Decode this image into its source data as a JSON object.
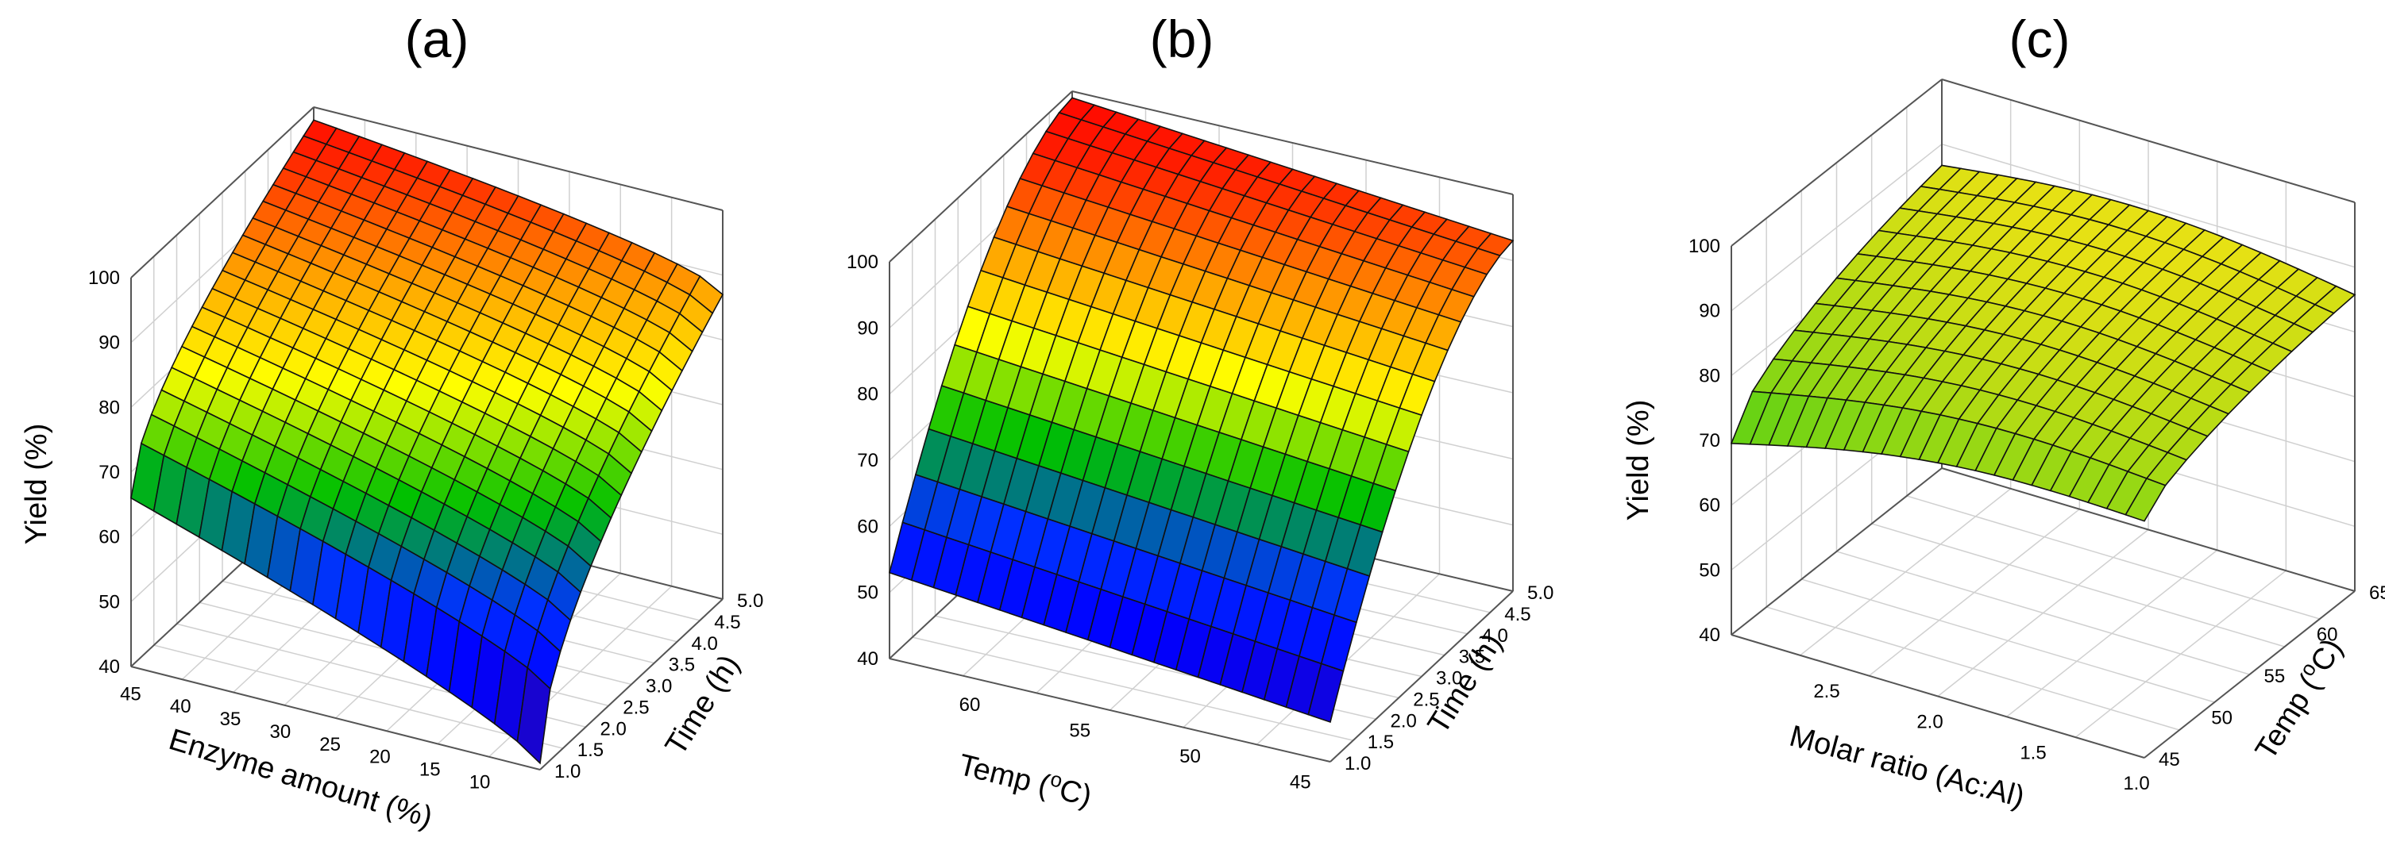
{
  "chart_data": [
    {
      "type": "surface",
      "panel_label": "(a)",
      "zlabel": "Yield (%)",
      "xlabel": "Enzyme amount (%)",
      "ylabel": "Time (h)",
      "zlim": [
        40,
        100
      ],
      "x_ticks": [
        "45",
        "40",
        "35",
        "30",
        "25",
        "20",
        "15",
        "10"
      ],
      "y_ticks": [
        "1.0",
        "1.5",
        "2.0",
        "2.5",
        "3.0",
        "3.5",
        "4.0",
        "4.5",
        "5.0"
      ],
      "z_ticks": [
        "40",
        "50",
        "60",
        "70",
        "80",
        "90",
        "100"
      ],
      "grid": true,
      "colormap": [
        "#3b0b8a",
        "#0000ff",
        "#00c000",
        "#ffff00",
        "#ff8c00",
        "#ff0000"
      ],
      "x": [
        10,
        50
      ],
      "y": [
        1.0,
        5.0
      ],
      "corner_values": {
        "x10_y1": 41,
        "x10_y5": 87,
        "x50_y1": 66,
        "x50_y5": 98
      }
    },
    {
      "type": "surface",
      "panel_label": "(b)",
      "zlabel": "",
      "xlabel": "Temp (",
      "xlabel_sup": "o",
      "xlabel_end": "C)",
      "ylabel": "Time (h)",
      "zlim": [
        40,
        100
      ],
      "x_ticks": [
        "60",
        "55",
        "50",
        "45"
      ],
      "y_ticks": [
        "1.0",
        "1.5",
        "2.0",
        "2.5",
        "3.0",
        "3.5",
        "4.0",
        "4.5",
        "5.0"
      ],
      "z_ticks": [
        "40",
        "50",
        "60",
        "70",
        "80",
        "90",
        "100"
      ],
      "grid": true,
      "x": [
        45,
        65
      ],
      "y": [
        1.0,
        5.0
      ],
      "corner_values": {
        "x45_y1": 46,
        "x45_y5": 93,
        "x65_y1": 53,
        "x65_y5": 99
      }
    },
    {
      "type": "surface",
      "panel_label": "(c)",
      "zlabel": "Yield (%)",
      "xlabel": "Molar ratio (Ac:Al)",
      "ylabel": "Temp (",
      "ylabel_sup": "o",
      "ylabel_end": "C)",
      "zlim": [
        40,
        100
      ],
      "x_ticks": [
        "2.5",
        "2.0",
        "1.5",
        "1.0"
      ],
      "y_ticks": [
        "45",
        "50",
        "55",
        "60",
        "65"
      ],
      "z_ticks": [
        "40",
        "50",
        "60",
        "70",
        "80",
        "90",
        "100"
      ],
      "grid": true,
      "x": [
        1.0,
        3.0
      ],
      "y": [
        45,
        65
      ],
      "corner_values": {
        "x1_y45": 78,
        "x1_y65": 86,
        "x3_y45": 71,
        "x3_y65": 87
      }
    }
  ]
}
